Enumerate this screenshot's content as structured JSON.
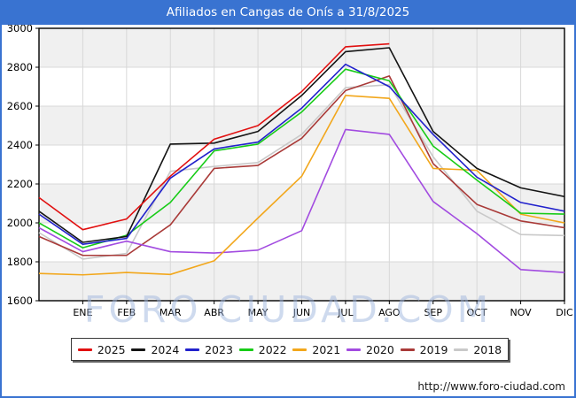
{
  "window": {
    "title": "Afiliados en Cangas de Onís a 31/8/2025"
  },
  "watermark": "FORO CIUDAD.COM",
  "footer": {
    "url": "http://www.foro-ciudad.com"
  },
  "colors": {
    "titlebar": "#3973d1",
    "frame_border": "#3973d1",
    "band_gray": "#f0f0f0",
    "grid": "#d8d8d8",
    "axis": "#000000"
  },
  "chart_data": {
    "type": "line",
    "title": "Afiliados en Cangas de Onís a 31/8/2025",
    "xlabel": "",
    "ylabel": "",
    "ylim": [
      1600,
      3000
    ],
    "ytick_step": 200,
    "yticks": [
      1600,
      1800,
      2000,
      2200,
      2400,
      2600,
      2800,
      3000
    ],
    "grid": true,
    "legend_position": "bottom",
    "x_categories": [
      "ENE",
      "FEB",
      "MAR",
      "ABR",
      "MAY",
      "JUN",
      "JUL",
      "AGO",
      "SEP",
      "OCT",
      "NOV",
      "DIC"
    ],
    "point_positions": [
      "start",
      "ENE",
      "FEB",
      "MAR",
      "ABR",
      "MAY",
      "JUN",
      "JUL",
      "AGO",
      "SEP",
      "OCT",
      "NOV",
      "DIC"
    ],
    "series": [
      {
        "name": "2025",
        "color": "#e11010",
        "values": [
          2130,
          1965,
          2020,
          2240,
          2430,
          2500,
          2675,
          2905,
          2920
        ]
      },
      {
        "name": "2024",
        "color": "#141414",
        "values": [
          2060,
          1900,
          1930,
          2405,
          2410,
          2470,
          2655,
          2880,
          2900,
          2470,
          2280,
          2180,
          2135
        ]
      },
      {
        "name": "2023",
        "color": "#2121cc",
        "values": [
          2045,
          1890,
          1920,
          2230,
          2380,
          2415,
          2590,
          2815,
          2700,
          2455,
          2235,
          2105,
          2060
        ]
      },
      {
        "name": "2022",
        "color": "#17cc17",
        "values": [
          2000,
          1872,
          1936,
          2105,
          2370,
          2405,
          2570,
          2790,
          2730,
          2395,
          2220,
          2050,
          2045
        ]
      },
      {
        "name": "2021",
        "color": "#f2a71c",
        "values": [
          1740,
          1733,
          1745,
          1735,
          1805,
          2025,
          2240,
          2655,
          2640,
          2280,
          2270,
          2045,
          2000
        ]
      },
      {
        "name": "2020",
        "color": "#a24be0",
        "values": [
          1975,
          1852,
          1906,
          1852,
          1845,
          1860,
          1960,
          2480,
          2455,
          2110,
          1945,
          1760,
          1745
        ]
      },
      {
        "name": "2019",
        "color": "#a93a38",
        "values": [
          1930,
          1833,
          1833,
          1990,
          2280,
          2295,
          2435,
          2680,
          2755,
          2305,
          2095,
          2010,
          1975
        ]
      },
      {
        "name": "2018",
        "color": "#c9c9c9",
        "values": [
          1950,
          1814,
          1843,
          2265,
          2290,
          2310,
          2455,
          2695,
          2710,
          2340,
          2060,
          1940,
          1935
        ]
      }
    ]
  }
}
